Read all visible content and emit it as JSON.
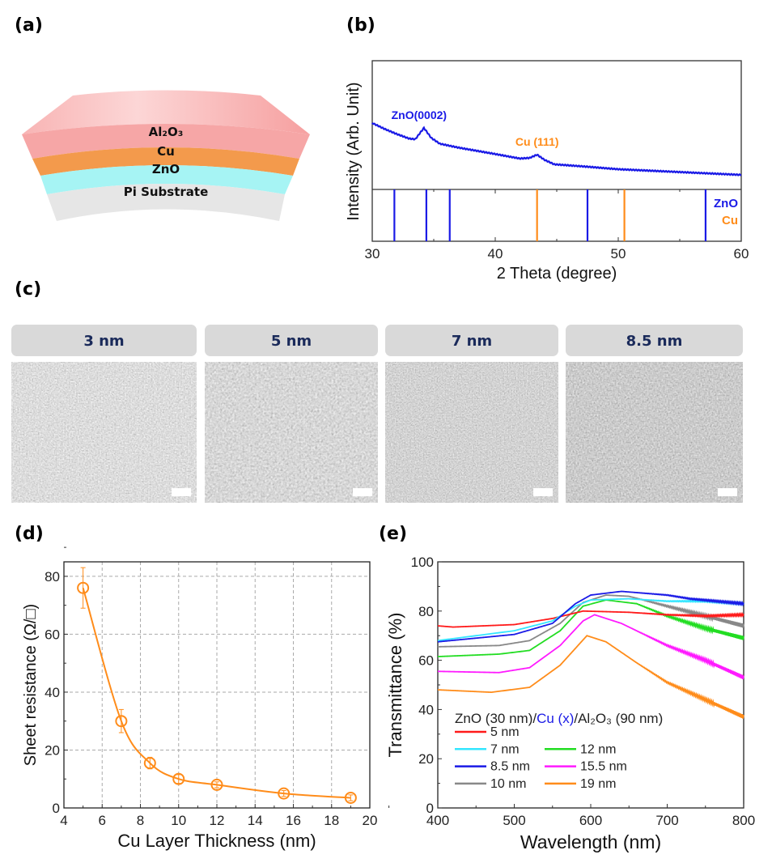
{
  "panel_labels": {
    "a": "(a)",
    "b": "(b)",
    "c": "(c)",
    "d": "(d)",
    "e": "(e)"
  },
  "diagram": {
    "layers": [
      {
        "label": "Al₂O₃",
        "color": "#f6a6a6"
      },
      {
        "label": "Cu",
        "color": "#f39a4c"
      },
      {
        "label": "ZnO",
        "color": "#9ef2f2"
      },
      {
        "label": "Pi Substrate",
        "color": "#e4e4e4"
      }
    ]
  },
  "sem": {
    "tabs": [
      "3 nm",
      "5 nm",
      "7 nm",
      "8.5 nm"
    ],
    "tab_color": "#d9d9d9",
    "text_color": "#1a2a5a"
  },
  "chart_data": [
    {
      "panel": "b",
      "type": "line",
      "xlabel": "2 Theta (degree)",
      "ylabel": "Intensity (Arb. Unit)",
      "xlim": [
        30,
        60
      ],
      "xticks": [
        "30",
        "40",
        "50",
        "60"
      ],
      "color": "#1a1ae6",
      "x": [
        30,
        31,
        32,
        33,
        33.5,
        34.2,
        34.8,
        35.5,
        37,
        40,
        42,
        42.8,
        43.4,
        44,
        44.8,
        47,
        50,
        55,
        60
      ],
      "y": [
        51.6,
        47,
        43,
        39.5,
        39,
        47.8,
        40,
        35.5,
        32.5,
        27.5,
        24,
        24.5,
        27,
        23,
        19.5,
        18,
        15.7,
        13.5,
        11.3
      ],
      "annotations": [
        {
          "text": "ZnO(0002)",
          "x": 34.2,
          "color": "#1a1ae6"
        },
        {
          "text": "Cu (111)",
          "x": 43.4,
          "color": "#ff8c1a"
        }
      ],
      "reference_lines": [
        {
          "name": "ZnO",
          "color": "#1a1ae6",
          "positions": [
            31.8,
            34.4,
            36.3,
            47.5,
            57.1
          ]
        },
        {
          "name": "Cu",
          "color": "#ff8c1a",
          "positions": [
            43.4,
            50.5
          ]
        }
      ]
    },
    {
      "panel": "d",
      "type": "scatter",
      "xlabel": "Cu Layer Thickness (nm)",
      "ylabel": "Sheet resistance (Ω/□)",
      "xlim": [
        4,
        20
      ],
      "ylim": [
        0,
        85
      ],
      "xticks": [
        "4",
        "6",
        "8",
        "10",
        "12",
        "14",
        "16",
        "18",
        "20"
      ],
      "yticks": [
        "0",
        "20",
        "40",
        "60",
        "80"
      ],
      "grid": true,
      "color": "#ff8c1a",
      "x": [
        5,
        7,
        8.5,
        10,
        12,
        15.5,
        19
      ],
      "y": [
        76,
        30,
        15.5,
        10,
        8,
        5,
        3.5
      ],
      "yerr": [
        7,
        4,
        2,
        1.5,
        1,
        1,
        1
      ]
    },
    {
      "panel": "e",
      "type": "line",
      "xlabel": "Wavelength (nm)",
      "ylabel": "Transmittance (%)",
      "xlim": [
        400,
        800
      ],
      "ylim": [
        0,
        100
      ],
      "xticks": [
        "400",
        "500",
        "600",
        "700",
        "800"
      ],
      "yticks": [
        "0",
        "20",
        "40",
        "60",
        "80",
        "100"
      ],
      "legend_title": {
        "pre": "ZnO (30 nm)/",
        "mid": "Cu (x)",
        "post": "/Al₂O₃ (90 nm)",
        "mid_color": "#1a1ae6"
      },
      "legend_position": "bottom-left",
      "series": [
        {
          "name": "5 nm",
          "color": "#ff1a1a",
          "x": [
            400,
            420,
            500,
            550,
            590,
            650,
            700,
            750,
            800
          ],
          "y": [
            74,
            73.5,
            74.5,
            77,
            80,
            79.5,
            78.5,
            78,
            78.5
          ]
        },
        {
          "name": "7 nm",
          "color": "#33e6ff",
          "x": [
            400,
            500,
            550,
            580,
            600,
            650,
            700,
            750,
            800
          ],
          "y": [
            68,
            72,
            76,
            82,
            84.5,
            85,
            84,
            84,
            83
          ]
        },
        {
          "name": "8.5 nm",
          "color": "#1a1ae6",
          "x": [
            400,
            500,
            550,
            580,
            600,
            640,
            700,
            730,
            800
          ],
          "y": [
            67.5,
            70.5,
            75,
            83,
            86.5,
            88,
            86.5,
            85,
            83
          ]
        },
        {
          "name": "10 nm",
          "color": "#888888",
          "x": [
            400,
            480,
            520,
            560,
            590,
            620,
            650,
            700,
            750,
            800
          ],
          "y": [
            65.5,
            66,
            68,
            75,
            83.5,
            86.5,
            86,
            82,
            78,
            74
          ]
        },
        {
          "name": "12 nm",
          "color": "#22dd22",
          "x": [
            400,
            480,
            520,
            560,
            590,
            620,
            660,
            700,
            750,
            800
          ],
          "y": [
            61.5,
            62.5,
            64,
            72,
            82,
            84.5,
            83,
            78,
            73,
            69
          ]
        },
        {
          "name": "15.5 nm",
          "color": "#ff1aff",
          "x": [
            400,
            480,
            520,
            560,
            590,
            605,
            640,
            700,
            750,
            800
          ],
          "y": [
            55.5,
            55,
            57,
            66,
            76,
            78.5,
            75,
            66,
            60,
            53
          ]
        },
        {
          "name": "19 nm",
          "color": "#ff8c1a",
          "x": [
            400,
            470,
            520,
            560,
            595,
            620,
            660,
            700,
            750,
            800
          ],
          "y": [
            48,
            47,
            49,
            58,
            70,
            67.5,
            59,
            51,
            44,
            37
          ]
        }
      ]
    }
  ]
}
